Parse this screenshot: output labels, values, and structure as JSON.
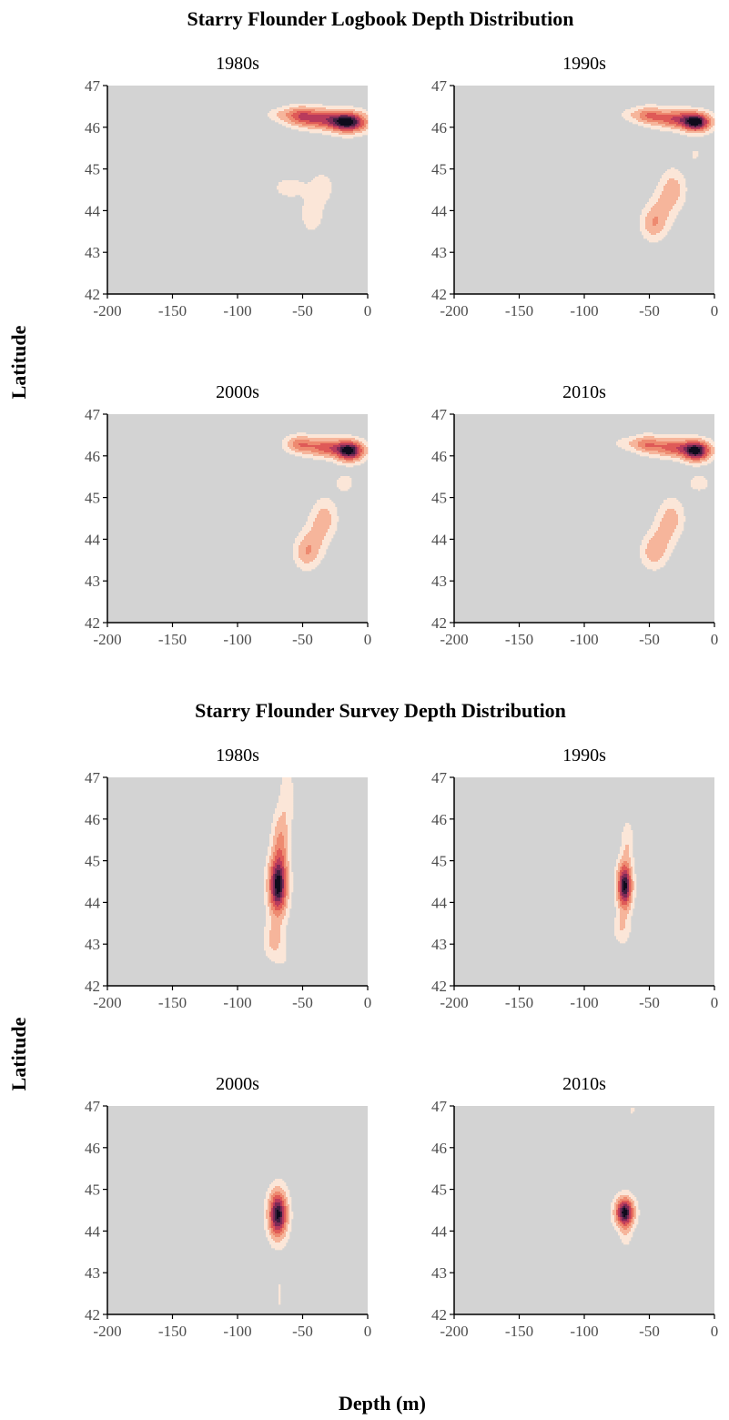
{
  "figure": {
    "xlabel": "Depth (m)",
    "ylabel": "Latitude"
  },
  "chart_data": [
    {
      "type": "contour",
      "title": "Starry Flounder Logbook Depth Distribution",
      "xlim": [
        -200,
        0
      ],
      "ylim": [
        42,
        47
      ],
      "xticks": [
        -200,
        -150,
        -100,
        -50,
        0
      ],
      "yticks": [
        42,
        43,
        44,
        45,
        46,
        47
      ],
      "panels": [
        {
          "label": "1980s",
          "peaks": [
            {
              "x": -15,
              "y": 46.12,
              "sx": 9,
              "sy": 0.15,
              "w": 1.0
            },
            {
              "x": -35,
              "y": 46.2,
              "sx": 12,
              "sy": 0.15,
              "w": 0.55
            },
            {
              "x": -52,
              "y": 46.28,
              "sx": 8,
              "sy": 0.14,
              "w": 0.42
            },
            {
              "x": -68,
              "y": 46.3,
              "sx": 6,
              "sy": 0.1,
              "w": 0.12
            },
            {
              "x": -60,
              "y": 44.55,
              "sx": 10,
              "sy": 0.2,
              "w": 0.08
            },
            {
              "x": -35,
              "y": 44.55,
              "sx": 7,
              "sy": 0.3,
              "w": 0.08
            },
            {
              "x": -43,
              "y": 43.9,
              "sx": 6,
              "sy": 0.3,
              "w": 0.1
            }
          ]
        },
        {
          "label": "1990s",
          "peaks": [
            {
              "x": -14,
              "y": 46.12,
              "sx": 7,
              "sy": 0.14,
              "w": 1.0
            },
            {
              "x": -30,
              "y": 46.2,
              "sx": 10,
              "sy": 0.14,
              "w": 0.55
            },
            {
              "x": -50,
              "y": 46.28,
              "sx": 7,
              "sy": 0.13,
              "w": 0.4
            },
            {
              "x": -64,
              "y": 46.3,
              "sx": 6,
              "sy": 0.1,
              "w": 0.1
            },
            {
              "x": -15,
              "y": 45.35,
              "sx": 3,
              "sy": 0.12,
              "w": 0.07
            },
            {
              "x": -32,
              "y": 44.5,
              "sx": 6,
              "sy": 0.3,
              "w": 0.22
            },
            {
              "x": -47,
              "y": 43.7,
              "sx": 6,
              "sy": 0.25,
              "w": 0.25
            },
            {
              "x": -40,
              "y": 44.05,
              "sx": 6,
              "sy": 0.3,
              "w": 0.15
            }
          ]
        },
        {
          "label": "2000s",
          "peaks": [
            {
              "x": -14,
              "y": 46.12,
              "sx": 7,
              "sy": 0.15,
              "w": 1.0
            },
            {
              "x": -32,
              "y": 46.2,
              "sx": 10,
              "sy": 0.14,
              "w": 0.5
            },
            {
              "x": -52,
              "y": 46.28,
              "sx": 7,
              "sy": 0.13,
              "w": 0.38
            },
            {
              "x": -18,
              "y": 45.35,
              "sx": 5,
              "sy": 0.15,
              "w": 0.1
            },
            {
              "x": -33,
              "y": 44.5,
              "sx": 6,
              "sy": 0.3,
              "w": 0.2
            },
            {
              "x": -47,
              "y": 43.7,
              "sx": 6,
              "sy": 0.25,
              "w": 0.25
            },
            {
              "x": -40,
              "y": 44.05,
              "sx": 6,
              "sy": 0.3,
              "w": 0.15
            }
          ]
        },
        {
          "label": "2010s",
          "peaks": [
            {
              "x": -14,
              "y": 46.12,
              "sx": 7,
              "sy": 0.15,
              "w": 1.0
            },
            {
              "x": -32,
              "y": 46.2,
              "sx": 10,
              "sy": 0.14,
              "w": 0.5
            },
            {
              "x": -52,
              "y": 46.28,
              "sx": 7,
              "sy": 0.13,
              "w": 0.38
            },
            {
              "x": -68,
              "y": 46.3,
              "sx": 6,
              "sy": 0.1,
              "w": 0.1
            },
            {
              "x": -12,
              "y": 45.35,
              "sx": 6,
              "sy": 0.15,
              "w": 0.09
            },
            {
              "x": -33,
              "y": 44.5,
              "sx": 6,
              "sy": 0.3,
              "w": 0.2
            },
            {
              "x": -47,
              "y": 43.7,
              "sx": 6,
              "sy": 0.25,
              "w": 0.22
            },
            {
              "x": -40,
              "y": 44.05,
              "sx": 6,
              "sy": 0.3,
              "w": 0.15
            }
          ]
        }
      ]
    },
    {
      "type": "contour",
      "title": "Starry Flounder Survey Depth Distribution",
      "xlim": [
        -200,
        0
      ],
      "ylim": [
        42,
        47
      ],
      "xticks": [
        -200,
        -150,
        -100,
        -50,
        0
      ],
      "yticks": [
        42,
        43,
        44,
        45,
        46,
        47
      ],
      "panels": [
        {
          "label": "1980s",
          "peaks": [
            {
              "x": -69,
              "y": 44.4,
              "sx": 4.5,
              "sy": 0.45,
              "w": 1.0
            },
            {
              "x": -67,
              "y": 45.4,
              "sx": 4,
              "sy": 0.5,
              "w": 0.3
            },
            {
              "x": -62,
              "y": 46.5,
              "sx": 3.5,
              "sy": 0.5,
              "w": 0.12
            },
            {
              "x": -72,
              "y": 43.1,
              "sx": 5,
              "sy": 0.3,
              "w": 0.2
            },
            {
              "x": -66,
              "y": 42.7,
              "sx": 3,
              "sy": 0.15,
              "w": 0.06
            }
          ]
        },
        {
          "label": "1990s",
          "peaks": [
            {
              "x": -69,
              "y": 44.4,
              "sx": 3.5,
              "sy": 0.35,
              "w": 1.0
            },
            {
              "x": -67,
              "y": 45.4,
              "sx": 3,
              "sy": 0.35,
              "w": 0.14
            },
            {
              "x": -71,
              "y": 43.4,
              "sx": 4,
              "sy": 0.25,
              "w": 0.15
            },
            {
              "x": -74,
              "y": 46.9,
              "sx": 1.5,
              "sy": 0.12,
              "w": 0.05
            },
            {
              "x": -63,
              "y": 46.9,
              "sx": 1.5,
              "sy": 0.12,
              "w": 0.05
            }
          ]
        },
        {
          "label": "2000s",
          "peaks": [
            {
              "x": -69,
              "y": 44.4,
              "sx": 4.5,
              "sy": 0.35,
              "w": 1.0
            },
            {
              "x": -68,
              "y": 42.5,
              "sx": 2,
              "sy": 0.4,
              "w": 0.06
            }
          ]
        },
        {
          "label": "2010s",
          "peaks": [
            {
              "x": -69,
              "y": 44.45,
              "sx": 4.5,
              "sy": 0.22,
              "w": 1.0
            },
            {
              "x": -68,
              "y": 44.0,
              "sx": 3,
              "sy": 0.25,
              "w": 0.12
            },
            {
              "x": -63,
              "y": 46.9,
              "sx": 1.5,
              "sy": 0.15,
              "w": 0.06
            }
          ]
        }
      ]
    }
  ],
  "colors": {
    "panel_background": "#d3d3d3",
    "levels": [
      "#fbe6d8",
      "#f6b59b",
      "#ee8a70",
      "#df5a57",
      "#b93b5c",
      "#7d2a56",
      "#3e1e3f",
      "#0e0b1c"
    ]
  }
}
